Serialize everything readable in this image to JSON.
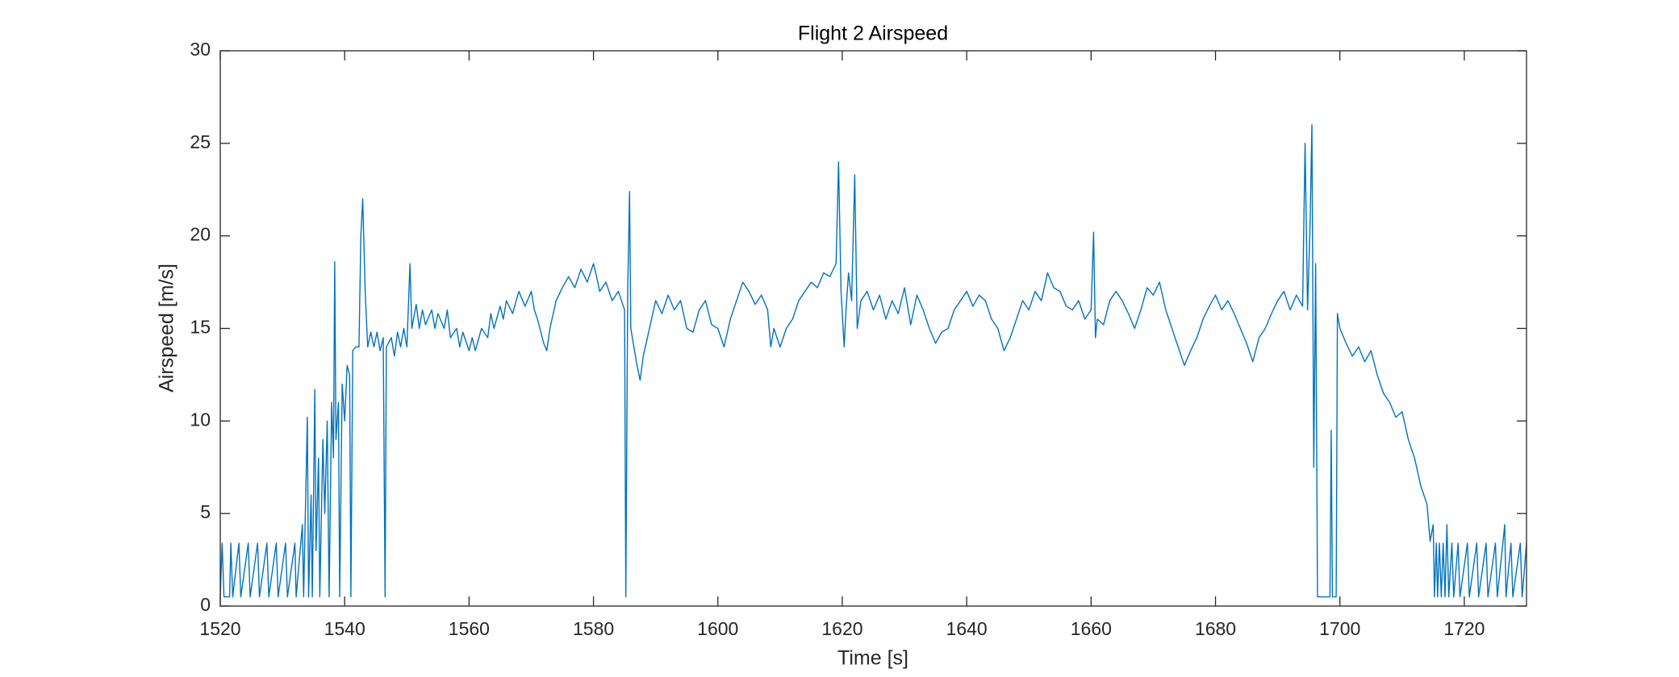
{
  "chart_data": {
    "type": "line",
    "title": "Flight 2 Airspeed",
    "x_label": "Time [s]",
    "y_label": "Airspeed [m/s]",
    "color": "#0072bd",
    "xlim": [
      1520,
      1730
    ],
    "xticks": [
      1520,
      1540,
      1560,
      1580,
      1600,
      1620,
      1640,
      1660,
      1680,
      1700,
      1720
    ],
    "ylim": [
      0,
      30
    ],
    "yticks": [
      0,
      5,
      10,
      15,
      20,
      25,
      30
    ],
    "grid": false,
    "x": [
      1520,
      1520.3,
      1520.6,
      1521.5,
      1521.7,
      1522,
      1523,
      1523.3,
      1524.5,
      1524.8,
      1526,
      1526.3,
      1527.5,
      1527.8,
      1529,
      1529.3,
      1530.5,
      1530.8,
      1532,
      1532.2,
      1533.2,
      1533.4,
      1534,
      1534.2,
      1534.6,
      1534.8,
      1535.2,
      1535.4,
      1535.8,
      1536,
      1536.5,
      1536.8,
      1537.2,
      1537.5,
      1537.9,
      1538.2,
      1538.4,
      1538.6,
      1539,
      1539.2,
      1539.6,
      1540,
      1540.4,
      1540.8,
      1541,
      1541.3,
      1541.8,
      1542.3,
      1542.6,
      1542.9,
      1543.3,
      1543.7,
      1544.2,
      1544.7,
      1545.2,
      1545.7,
      1546.2,
      1546.5,
      1546.7,
      1547.5,
      1548,
      1548.5,
      1549,
      1549.5,
      1550,
      1550.5,
      1550.8,
      1551.5,
      1552,
      1552.5,
      1553,
      1554,
      1554.5,
      1555,
      1556,
      1556.5,
      1557,
      1558,
      1558.5,
      1559,
      1560,
      1560.5,
      1561,
      1562,
      1563,
      1563.5,
      1564,
      1565,
      1565.5,
      1566,
      1567,
      1568,
      1569,
      1570,
      1570.5,
      1571,
      1572,
      1572.5,
      1573,
      1574,
      1575,
      1576,
      1577,
      1578,
      1579,
      1580,
      1580.5,
      1581,
      1582,
      1583,
      1584,
      1585,
      1585.2,
      1585.5,
      1585.8,
      1586,
      1586.5,
      1587,
      1587.5,
      1588,
      1589,
      1590,
      1591,
      1592,
      1593,
      1594,
      1595,
      1596,
      1597,
      1598,
      1599,
      1600,
      1601,
      1602,
      1603,
      1604,
      1605,
      1606,
      1607,
      1608,
      1608.5,
      1609,
      1610,
      1611,
      1612,
      1613,
      1614,
      1615,
      1616,
      1617,
      1618,
      1619,
      1619.4,
      1619.8,
      1620.3,
      1620.6,
      1621,
      1621.5,
      1622,
      1622.4,
      1623,
      1624,
      1625,
      1626,
      1627,
      1628,
      1629,
      1630,
      1631,
      1632,
      1633,
      1634,
      1635,
      1636,
      1637,
      1638,
      1639,
      1640,
      1641,
      1642,
      1643,
      1644,
      1645,
      1646,
      1647,
      1648,
      1649,
      1650,
      1651,
      1652,
      1653,
      1654,
      1655,
      1656,
      1657,
      1658,
      1659,
      1660,
      1660.4,
      1660.7,
      1661,
      1662,
      1663,
      1664,
      1665,
      1666,
      1667,
      1668,
      1669,
      1670,
      1671,
      1672,
      1673,
      1674,
      1675,
      1676,
      1677,
      1678,
      1679,
      1680,
      1681,
      1682,
      1683,
      1684,
      1685,
      1686,
      1687,
      1688,
      1689,
      1690,
      1691,
      1692,
      1693,
      1694,
      1694.4,
      1694.8,
      1695.2,
      1695.5,
      1695.8,
      1696.1,
      1696.4,
      1698.4,
      1698.6,
      1698.8,
      1699.4,
      1699.6,
      1700,
      1701,
      1702,
      1703,
      1704,
      1705,
      1706,
      1707,
      1708,
      1709,
      1710,
      1711,
      1712,
      1713,
      1714,
      1714.5,
      1715,
      1715.2,
      1715.5,
      1715.7,
      1716,
      1716.3,
      1716.6,
      1716.9,
      1717.2,
      1717.5,
      1718,
      1718.3,
      1719,
      1719.3,
      1720.5,
      1720.8,
      1722,
      1722.3,
      1723.5,
      1723.8,
      1725,
      1725.3,
      1726.5,
      1726.7,
      1727.5,
      1727.8,
      1729,
      1729.3,
      1730
    ],
    "values": [
      0.5,
      3.4,
      0.5,
      0.5,
      3.4,
      0.5,
      3.4,
      0.5,
      3.4,
      0.5,
      3.4,
      0.5,
      3.4,
      0.5,
      3.4,
      0.5,
      3.4,
      0.5,
      3.4,
      0.5,
      4.4,
      0.5,
      10.2,
      0.5,
      6,
      0.5,
      11.7,
      3,
      8,
      0.5,
      9,
      5,
      10,
      0.5,
      11,
      8,
      18.6,
      9,
      11,
      0.5,
      12,
      10,
      13,
      12.5,
      0.5,
      13.8,
      14,
      14,
      20,
      22,
      17,
      14,
      14.8,
      14,
      14.8,
      13.8,
      14.5,
      0.5,
      14,
      14.5,
      13.5,
      14.8,
      14,
      15,
      14,
      18.5,
      15,
      16.3,
      15,
      16,
      15.2,
      16,
      15,
      15.8,
      15,
      16,
      14.5,
      15,
      14,
      14.8,
      13.8,
      14.5,
      13.8,
      15,
      14.5,
      15.8,
      15,
      16.2,
      15.5,
      16.5,
      15.8,
      17,
      16.2,
      17,
      16,
      15.5,
      14.2,
      13.8,
      15,
      16.5,
      17.2,
      17.8,
      17.2,
      18.2,
      17.5,
      18.5,
      17.8,
      17,
      17.5,
      16.5,
      17,
      16,
      0.5,
      17,
      22.4,
      15,
      14,
      13,
      12.2,
      13.5,
      15,
      16.5,
      15.8,
      16.8,
      16,
      16.5,
      15,
      14.8,
      16,
      16.5,
      15.2,
      15,
      14,
      15.5,
      16.5,
      17.5,
      17,
      16.3,
      16.8,
      16,
      14,
      15,
      14,
      15,
      15.5,
      16.5,
      17,
      17.5,
      17.2,
      18,
      17.8,
      18.5,
      24,
      17,
      14,
      16,
      18,
      16.5,
      23.3,
      15,
      16.5,
      17,
      16,
      16.8,
      15.5,
      16.5,
      15.8,
      17.2,
      15.2,
      16.8,
      16,
      15,
      14.2,
      14.8,
      15,
      16,
      16.5,
      17,
      16.2,
      16.8,
      16.5,
      15.5,
      15,
      13.8,
      14.5,
      15.5,
      16.5,
      16,
      17,
      16.5,
      18,
      17.2,
      17,
      16.2,
      16,
      16.5,
      15.5,
      16,
      20.2,
      14.5,
      15.5,
      15.2,
      16.5,
      17,
      16.5,
      15.8,
      15,
      16,
      17.2,
      16.8,
      17.5,
      16,
      15,
      14,
      13,
      13.8,
      14.5,
      15.5,
      16.2,
      16.8,
      16,
      16.5,
      15.8,
      15,
      14.2,
      13.2,
      14.5,
      15,
      15.8,
      16.5,
      17,
      16,
      16.8,
      16.2,
      25,
      16,
      20.5,
      26,
      7.5,
      18.5,
      0.5,
      0.5,
      9.5,
      0.5,
      0.5,
      15.8,
      15,
      14.2,
      13.5,
      14,
      13.2,
      13.8,
      12.5,
      11.5,
      11,
      10.2,
      10.5,
      9,
      8,
      6.5,
      5.5,
      3.5,
      4.4,
      0.5,
      3.4,
      0.5,
      3.4,
      0.5,
      3.4,
      0.5,
      4.4,
      0.5,
      3.4,
      0.5,
      3.4,
      0.5,
      3.4,
      0.5,
      3.4,
      0.5,
      3.4,
      0.5,
      3.4,
      0.5,
      4.4,
      0.5,
      3.4,
      0.5,
      3.4,
      0.5,
      3.4
    ]
  }
}
